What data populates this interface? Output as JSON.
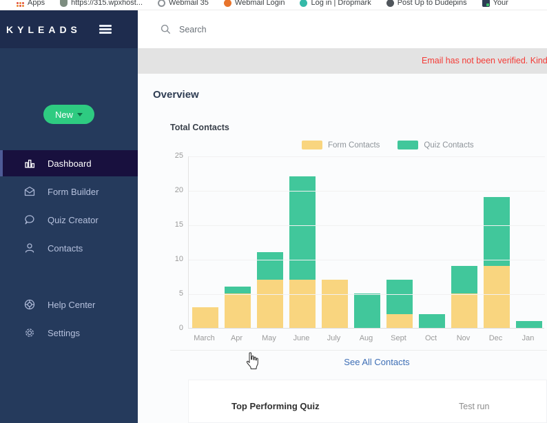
{
  "bookmarks_bar": {
    "items": [
      {
        "label": "Apps",
        "icon": "apps-grid-icon"
      },
      {
        "label": "https://315.wpxhost...",
        "icon": "shield-favicon"
      },
      {
        "label": "Webmail 35",
        "icon": "ring-favicon"
      },
      {
        "label": "Webmail Login",
        "icon": "orange-favicon"
      },
      {
        "label": "Log in | Dropmark",
        "icon": "teal-favicon"
      },
      {
        "label": "Post Up to Dudepins",
        "icon": "dark-favicon"
      },
      {
        "label": "Your",
        "icon": "navy-favicon"
      }
    ]
  },
  "sidebar": {
    "logo": "KYLEADS",
    "new_button": {
      "label": "New",
      "color": "#2ecb81"
    },
    "nav": [
      {
        "label": "Dashboard",
        "active": true
      },
      {
        "label": "Form Builder",
        "active": false
      },
      {
        "label": "Quiz Creator",
        "active": false
      },
      {
        "label": "Contacts",
        "active": false
      }
    ],
    "nav_secondary": [
      {
        "label": "Help Center"
      },
      {
        "label": "Settings"
      }
    ]
  },
  "topbar": {
    "search_placeholder": "Search"
  },
  "banner": {
    "message": "Email has not been verified. Kindly check your mail fo",
    "color": "#f43b36",
    "background": "#e3e3e3"
  },
  "page": {
    "heading": "Overview"
  },
  "chart_data": {
    "type": "bar",
    "stacked": true,
    "title": "Total Contacts",
    "categories": [
      "March",
      "Apr",
      "May",
      "June",
      "July",
      "Aug",
      "Sept",
      "Oct",
      "Nov",
      "Dec",
      "Jan"
    ],
    "series": [
      {
        "name": "Form Contacts",
        "color": "#f9d57f",
        "values": [
          3,
          5,
          7,
          7,
          7,
          0,
          2,
          0,
          5,
          9,
          0
        ]
      },
      {
        "name": "Quiz Contacts",
        "color": "#41c79b",
        "values": [
          0,
          1,
          4,
          15,
          0,
          5,
          5,
          2,
          4,
          10,
          1
        ]
      }
    ],
    "totals": [
      3,
      6,
      11,
      22,
      7,
      5,
      7,
      2,
      9,
      19,
      1
    ],
    "xlabel": "",
    "ylabel": "",
    "ylim": [
      0,
      25
    ],
    "ytick_step": 5,
    "grid": true,
    "legend_position": "top"
  },
  "links": {
    "see_all_contacts": "See All Contacts",
    "link_color": "#3d6eb5"
  },
  "bottom_card": {
    "heading": "Top Performing Quiz",
    "value": "Test run"
  }
}
